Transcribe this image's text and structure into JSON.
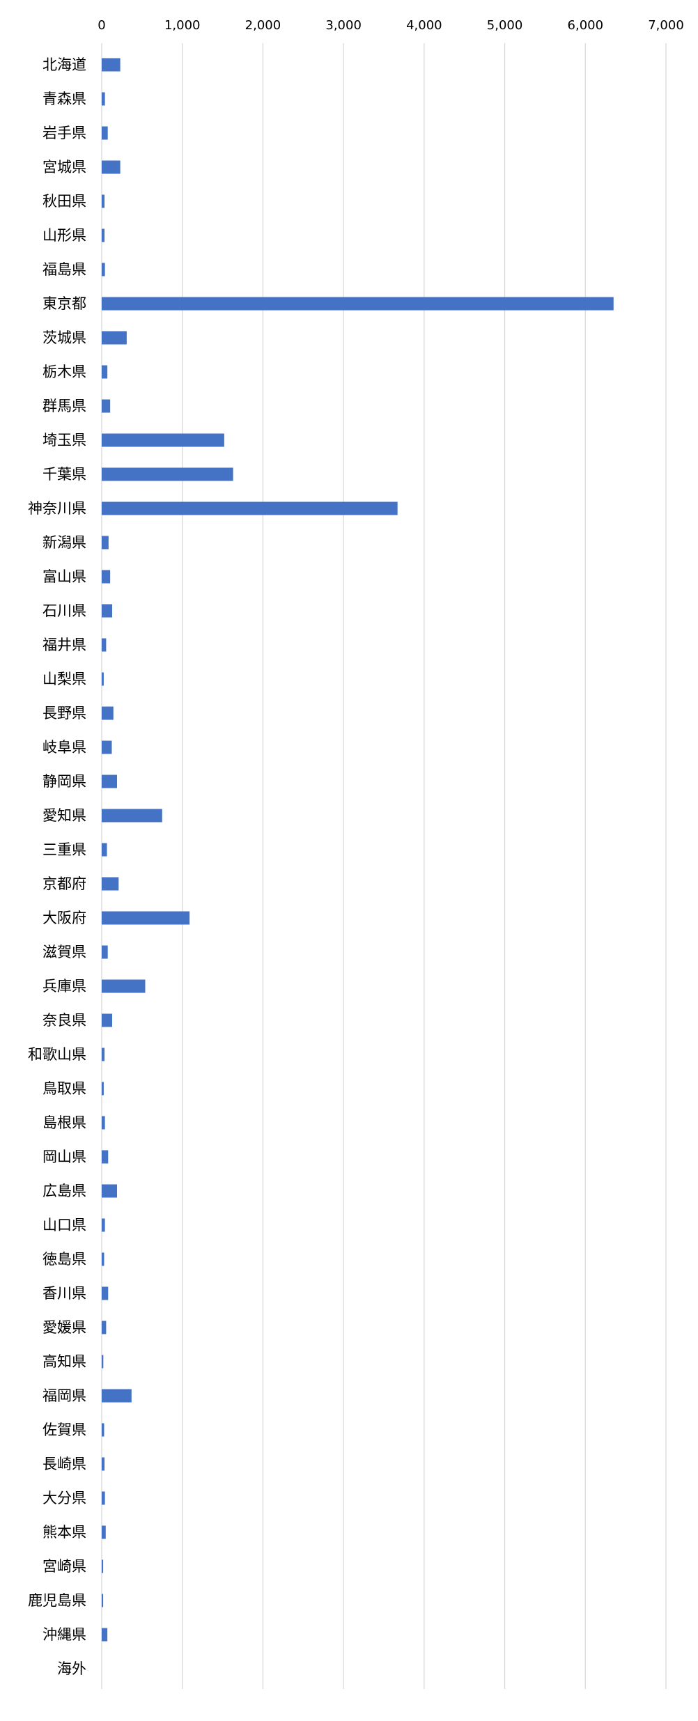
{
  "chart_data": {
    "type": "bar",
    "orientation": "horizontal",
    "title": "",
    "xlabel": "",
    "ylabel": "",
    "xlim": [
      0,
      7000
    ],
    "x_ticks": [
      0,
      1000,
      2000,
      3000,
      4000,
      5000,
      6000,
      7000
    ],
    "x_tick_labels": [
      "0",
      "1,000",
      "2,000",
      "3,000",
      "4,000",
      "5,000",
      "6,000",
      "7,000"
    ],
    "x_axis_position": "top",
    "grid": true,
    "legend": "none",
    "bar_color": "#4472C4",
    "grid_color": "#D9D9D9",
    "categories": [
      "北海道",
      "青森県",
      "岩手県",
      "宮城県",
      "秋田県",
      "山形県",
      "福島県",
      "東京都",
      "茨城県",
      "栃木県",
      "群馬県",
      "埼玉県",
      "千葉県",
      "神奈川県",
      "新潟県",
      "富山県",
      "石川県",
      "福井県",
      "山梨県",
      "長野県",
      "岐阜県",
      "静岡県",
      "愛知県",
      "三重県",
      "京都府",
      "大阪府",
      "滋賀県",
      "兵庫県",
      "奈良県",
      "和歌山県",
      "鳥取県",
      "島根県",
      "岡山県",
      "広島県",
      "山口県",
      "徳島県",
      "香川県",
      "愛媛県",
      "高知県",
      "福岡県",
      "佐賀県",
      "長崎県",
      "大分県",
      "熊本県",
      "宮崎県",
      "鹿児島県",
      "沖縄県",
      "海外"
    ],
    "values": [
      230,
      40,
      75,
      230,
      35,
      35,
      40,
      6350,
      310,
      70,
      105,
      1520,
      1630,
      3670,
      85,
      105,
      130,
      55,
      25,
      145,
      125,
      190,
      750,
      65,
      210,
      1090,
      75,
      540,
      130,
      35,
      25,
      40,
      80,
      190,
      40,
      30,
      80,
      55,
      20,
      370,
      30,
      35,
      40,
      50,
      18,
      18,
      70,
      0
    ]
  }
}
